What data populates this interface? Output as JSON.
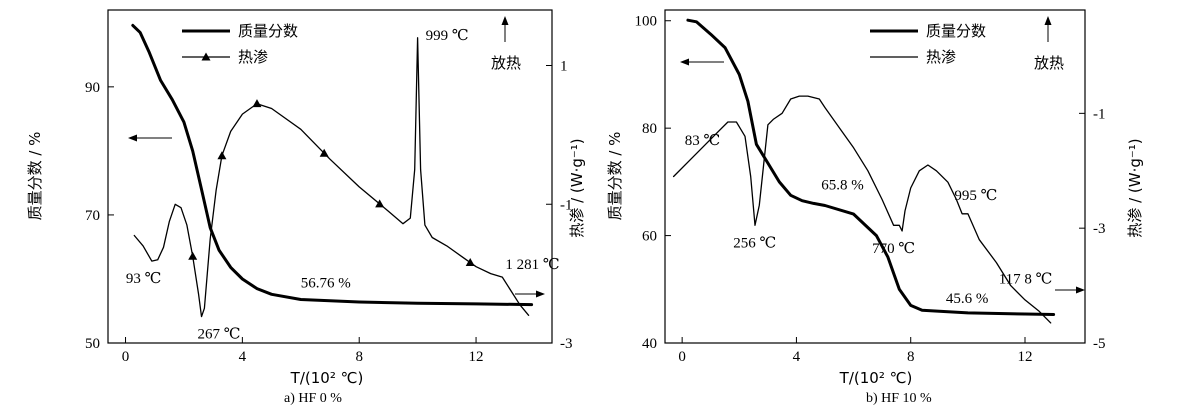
{
  "chart_data": [
    {
      "type": "line",
      "caption": "a)   HF 0 %",
      "xlabel": "T/(10² ℃)",
      "ylabel_left": "质量分数 / %",
      "ylabel_right": "热渗 / (W·g⁻¹)",
      "xlim": [
        -0.6,
        14.6
      ],
      "ylim_left": [
        50,
        102
      ],
      "ylim_right": [
        -3,
        1.8
      ],
      "x_ticks": [
        0,
        4,
        8,
        12
      ],
      "y_left_ticks": [
        50,
        70,
        90
      ],
      "y_right_ticks": [
        -3,
        -1,
        1
      ],
      "legend": [
        {
          "name": "质量分数",
          "style": "thick"
        },
        {
          "name": "热渗",
          "style": "marker"
        }
      ],
      "exo_label": "放热",
      "series": [
        {
          "name": "质量分数",
          "axis": "left",
          "x": [
            0.25,
            0.5,
            0.8,
            1.2,
            1.6,
            2.0,
            2.3,
            2.6,
            2.9,
            3.2,
            3.6,
            4.0,
            4.5,
            5.0,
            6.0,
            8.0,
            10.0,
            12.0,
            13.9
          ],
          "y": [
            99.6,
            98.5,
            95.5,
            91.0,
            88.0,
            84.5,
            80.0,
            74.0,
            68.0,
            64.5,
            61.8,
            60.0,
            58.5,
            57.6,
            56.8,
            56.4,
            56.2,
            56.1,
            56.0
          ]
        },
        {
          "name": "热渗",
          "axis": "right",
          "x": [
            0.3,
            0.6,
            0.9,
            1.1,
            1.3,
            1.5,
            1.7,
            1.9,
            2.1,
            2.3,
            2.5,
            2.6,
            2.7,
            2.8,
            2.9,
            3.1,
            3.3,
            3.6,
            4.0,
            4.5,
            5.0,
            6.0,
            7.0,
            8.0,
            9.0,
            9.5,
            9.75,
            9.9,
            10.0,
            10.1,
            10.25,
            10.5,
            11.0,
            11.5,
            12.0,
            12.5,
            12.9,
            13.2,
            13.5,
            13.8
          ],
          "y": [
            -1.45,
            -1.6,
            -1.82,
            -1.8,
            -1.62,
            -1.25,
            -1.0,
            -1.05,
            -1.3,
            -1.75,
            -2.3,
            -2.62,
            -2.5,
            -2.0,
            -1.5,
            -0.8,
            -0.3,
            0.05,
            0.3,
            0.45,
            0.38,
            0.08,
            -0.35,
            -0.75,
            -1.1,
            -1.28,
            -1.2,
            -0.5,
            1.4,
            -0.5,
            -1.3,
            -1.48,
            -1.6,
            -1.75,
            -1.9,
            -2.0,
            -2.05,
            -2.25,
            -2.45,
            -2.6
          ],
          "markers_x": [
            2.3,
            3.3,
            4.5,
            6.8,
            8.7,
            11.8
          ]
        }
      ],
      "annotations": [
        {
          "text": "93 ℃",
          "x": 0.9,
          "y_right": -1.82
        },
        {
          "text": "267 ℃",
          "x": 2.67,
          "y_right": -2.62
        },
        {
          "text": "999 ℃",
          "x": 10.0,
          "y_right": 1.4
        },
        {
          "text": "56.76 %",
          "x": 6.0,
          "y_left": 56.8
        },
        {
          "text": "1 281 ℃",
          "x": 12.8,
          "y_right": -2.05
        }
      ]
    },
    {
      "type": "line",
      "caption": "b)   HF 10 %",
      "xlabel": "T/(10² ℃)",
      "ylabel_left": "质量分数 / %",
      "ylabel_right": "热渗 / (W·g⁻¹)",
      "xlim": [
        -0.6,
        14.1
      ],
      "ylim_left": [
        40,
        102
      ],
      "ylim_right": [
        -5,
        0.8
      ],
      "x_ticks": [
        0,
        4,
        8,
        12
      ],
      "y_left_ticks": [
        40,
        60,
        80,
        100
      ],
      "y_right_ticks": [
        -5,
        -3,
        -1
      ],
      "legend": [
        {
          "name": "质量分数",
          "style": "thick"
        },
        {
          "name": "热渗",
          "style": "thin"
        }
      ],
      "exo_label": "放热",
      "series": [
        {
          "name": "质量分数",
          "axis": "left",
          "x": [
            0.2,
            0.5,
            1.0,
            1.5,
            2.0,
            2.3,
            2.6,
            3.0,
            3.4,
            3.8,
            4.2,
            4.6,
            5.0,
            6.0,
            6.8,
            7.2,
            7.6,
            8.0,
            8.4,
            9.0,
            10.0,
            12.0,
            13.0
          ],
          "y": [
            100.1,
            99.8,
            97.5,
            95.0,
            90.0,
            85.0,
            77.0,
            73.5,
            70.0,
            67.5,
            66.5,
            66.0,
            65.6,
            64.0,
            60.0,
            56.0,
            50.0,
            47.0,
            46.1,
            45.9,
            45.6,
            45.4,
            45.3
          ]
        },
        {
          "name": "热渗",
          "axis": "right",
          "x": [
            -0.3,
            0.3,
            0.8,
            1.2,
            1.6,
            1.9,
            2.2,
            2.4,
            2.55,
            2.7,
            2.85,
            3.0,
            3.2,
            3.5,
            3.8,
            4.1,
            4.4,
            4.8,
            5.0,
            5.5,
            6.0,
            6.5,
            7.0,
            7.4,
            7.6,
            7.7,
            7.8,
            8.0,
            8.3,
            8.6,
            8.9,
            9.3,
            9.6,
            9.8,
            10.0,
            10.4,
            11.0,
            11.5,
            12.0,
            12.5,
            12.9
          ],
          "y": [
            -2.1,
            -1.8,
            -1.55,
            -1.35,
            -1.15,
            -1.15,
            -1.4,
            -2.1,
            -2.95,
            -2.6,
            -1.9,
            -1.2,
            -1.1,
            -1.0,
            -0.75,
            -0.7,
            -0.7,
            -0.75,
            -0.9,
            -1.25,
            -1.6,
            -2.0,
            -2.5,
            -2.95,
            -2.95,
            -3.05,
            -2.7,
            -2.3,
            -2.0,
            -1.9,
            -2.0,
            -2.2,
            -2.5,
            -2.75,
            -2.75,
            -3.2,
            -3.6,
            -4.0,
            -4.25,
            -4.45,
            -4.65
          ]
        }
      ],
      "annotations": [
        {
          "text": "83 ℃",
          "x": 1.0,
          "y_right": -1.55
        },
        {
          "text": "256 ℃",
          "x": 2.56,
          "y_right": -2.95
        },
        {
          "text": "65.8 %",
          "x": 4.8,
          "y_left": 66.0
        },
        {
          "text": "770 ℃",
          "x": 7.7,
          "y_right": -3.05
        },
        {
          "text": "995 ℃",
          "x": 9.95,
          "y_right": -2.75
        },
        {
          "text": "117 8 ℃",
          "x": 11.78,
          "y_right": -4.1
        },
        {
          "text": "45.6 %",
          "x": 10.0,
          "y_left": 45.6
        }
      ]
    }
  ]
}
